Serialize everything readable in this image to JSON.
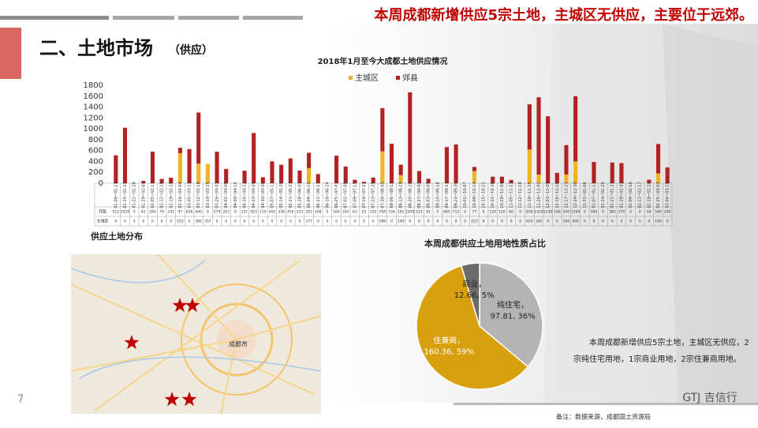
{
  "header": {
    "headline": "本周成都新增供应5宗土地，主城区无供应，主要位于远郊。",
    "section": "二、土地市场",
    "section_sub": "（供应）",
    "page_number": "7",
    "logo": "GTJ 吉信行",
    "footnote": "备注：数据来源，成都国土资源局"
  },
  "map": {
    "title": "供应土地分布",
    "city_label": "成都市"
  },
  "paragraph": "本周成都新增供应5宗土地，主城区无供应，2宗纯住宅用地，1宗商业用地，2宗住兼商用地。",
  "chart_data": [
    {
      "type": "bar",
      "stacked": true,
      "title": "2018年1月至今大成都土地供应情况",
      "categories": [
        "01-08~01-14",
        "01-15~01-21",
        "01-22~01-28",
        "01-29~02-04",
        "02-05~02-11",
        "02-12~02-18",
        "02-19~02-25",
        "02-26~03-04",
        "03-05~03-11",
        "03-12~03-18",
        "03-19~03-25",
        "03-26~04-01",
        "04-02~04-08",
        "04-09~04-15",
        "04-16~04-22",
        "04-23~04-29",
        "04-30~05-06",
        "05-07~05-13",
        "05-14~05-20",
        "05-21~05-27",
        "05-28~06-03",
        "06-04~06-10",
        "06-11~06-17",
        "06-18~06-24",
        "06-25~07-01",
        "07-02~07-08",
        "07-09~07-15",
        "07-16~07-22",
        "07-23~07-29",
        "07-30~08-05",
        "08-06~08-12",
        "08-13~08-19",
        "08-20~08-26",
        "08-27~09-02",
        "09-03~09-09",
        "09-10~09-16",
        "09-17~09-23",
        "09-24~09-30",
        "10-01~10-07",
        "10-08~10-14",
        "10-15~10-21",
        "10-22~10-28",
        "10-29~11-04",
        "11-05~11-11",
        "11-12~11-18",
        "11-19~11-25",
        "11-26~12-02",
        "12-03~12-09",
        "12-10~12-16",
        "12-17~12-23",
        "12-24~12-30",
        "12-31~01-06",
        "01-07~01-13",
        "01-14~01-20",
        "01-21~01-27",
        "01-28~02-03",
        "02-04~02-10",
        "02-11~02-17",
        "02-18~02-24",
        "02-25~03-03",
        "03-04~03-10"
      ],
      "series": [
        {
          "name": "主城区",
          "color": "#f0b323",
          "values": [
            0,
            0,
            0,
            0,
            0,
            0,
            0,
            553,
            0,
            360,
            357,
            0,
            0,
            0,
            0,
            0,
            0,
            0,
            0,
            0,
            0,
            277,
            0,
            0,
            0,
            0,
            0,
            0,
            0,
            586,
            0,
            149,
            0,
            0,
            0,
            0,
            0,
            0,
            0,
            223,
            0,
            0,
            0,
            0,
            0,
            620,
            160,
            0,
            0,
            160,
            400,
            0,
            0,
            0,
            0,
            0,
            0,
            0,
            0,
            180,
            0
          ]
        },
        {
          "name": "郊县",
          "color": "#b22222",
          "values": [
            512,
            1020,
            0,
            42,
            580,
            79,
            101,
            97,
            626,
            940,
            0,
            579,
            263,
            0,
            231,
            923,
            110,
            402,
            338,
            456,
            233,
            283,
            168,
            0,
            506,
            305,
            63,
            25,
            102,
            794,
            724,
            191,
            1670,
            223,
            81,
            0,
            665,
            712,
            0,
            77,
            0,
            120,
            120,
            60,
            0,
            830,
            1420,
            1230,
            190,
            540,
            1200,
            0,
            390,
            0,
            380,
            370,
            0,
            0,
            64,
            540,
            290
          ]
        }
      ],
      "ylim": [
        0,
        1800
      ],
      "yticks": [
        0,
        200,
        400,
        600,
        800,
        1000,
        1200,
        1400,
        1600,
        1800
      ],
      "grid": false,
      "legend": "top"
    },
    {
      "type": "pie",
      "title": "本周成都供应土地用地性质占比",
      "categories": [
        "纯住宅，",
        "住兼商，",
        "商业，"
      ],
      "values": [
        97.81,
        160.36,
        12.66
      ],
      "value_labels": [
        "97.81, 36%",
        "160.36, 59%",
        "12.66, 5%"
      ],
      "colors": [
        "#b4b4b4",
        "#d9a00e",
        "#6b6b6b"
      ]
    }
  ]
}
